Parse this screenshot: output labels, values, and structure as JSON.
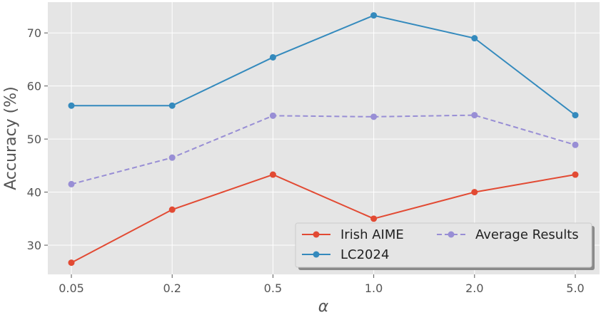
{
  "chart_data": {
    "type": "line",
    "title": "",
    "xlabel": "α",
    "ylabel": "Accuracy (%)",
    "categories": [
      "0.05",
      "0.2",
      "0.5",
      "1.0",
      "2.0",
      "5.0"
    ],
    "ylim": [
      24.5,
      75.8
    ],
    "yticks": [
      30,
      40,
      50,
      60,
      70
    ],
    "grid": true,
    "legend_position": "lower-right",
    "series": [
      {
        "name": "Irish AIME",
        "color": "#E24A33",
        "style": "solid",
        "values": [
          26.7,
          36.7,
          43.3,
          35.0,
          40.0,
          43.3
        ]
      },
      {
        "name": "LC2024",
        "color": "#348ABD",
        "style": "solid",
        "values": [
          56.3,
          56.3,
          65.4,
          73.3,
          69.0,
          54.5
        ]
      },
      {
        "name": "Average Results",
        "color": "#988ED5",
        "style": "dashed",
        "values": [
          41.5,
          46.5,
          54.4,
          54.2,
          54.5,
          48.9
        ]
      }
    ]
  }
}
